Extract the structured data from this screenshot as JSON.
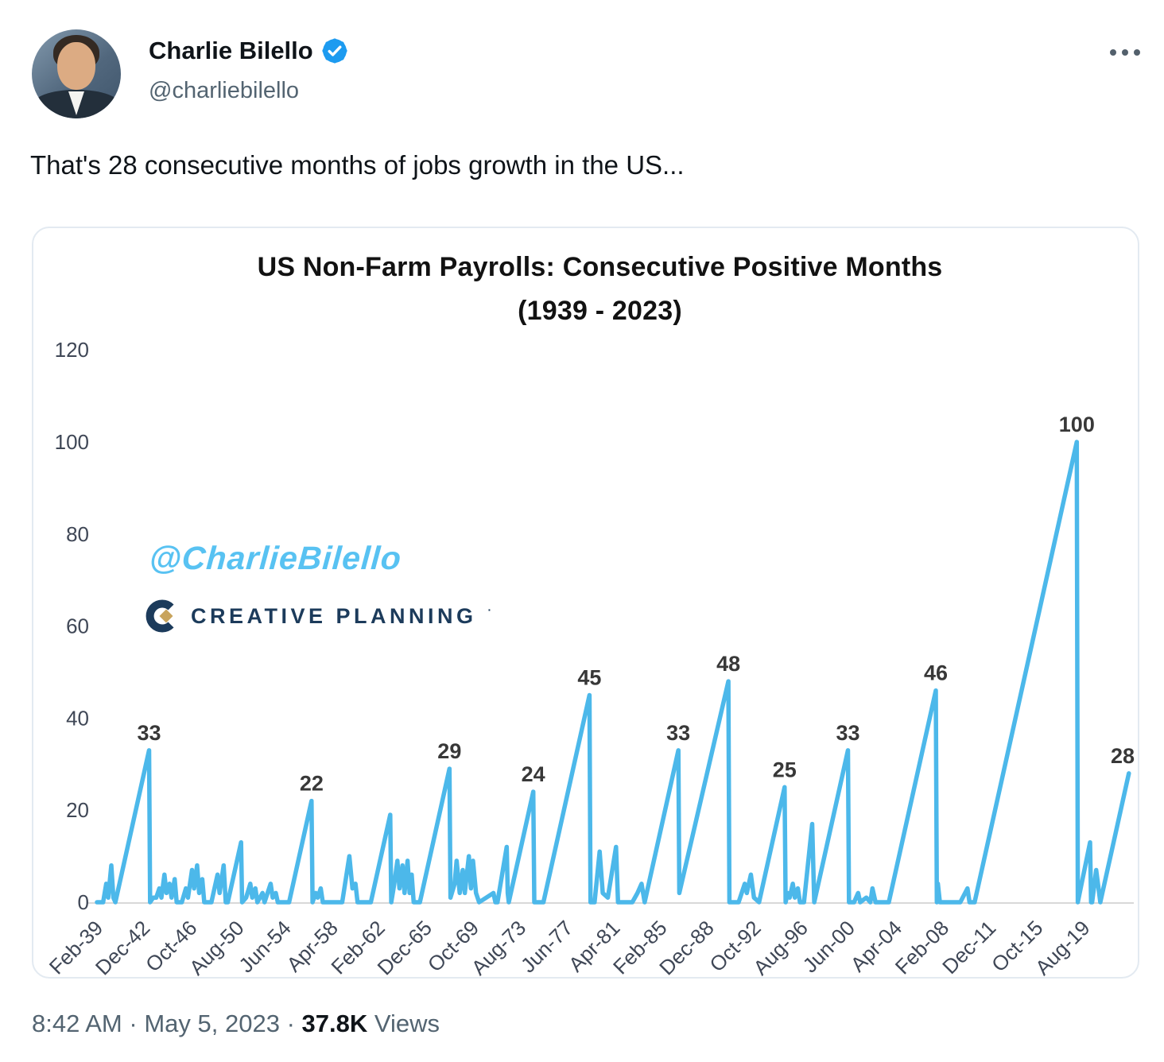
{
  "tweet": {
    "author_name": "Charlie Bilello",
    "author_handle": "@charliebilello",
    "text": "That's 28 consecutive months of jobs growth in the US...",
    "timestamp": "8:42 AM",
    "date": "May 5, 2023",
    "separator": "·",
    "views_count": "37.8K",
    "views_label": "Views"
  },
  "watermarks": {
    "handle": "@CharlieBilello",
    "brand": "CREATIVE PLANNING",
    "brand_mark": "·"
  },
  "colors": {
    "accent_blue": "#1D9BF0",
    "line_blue": "#4CB8EA",
    "watermark_blue": "#58C2F2",
    "brand_navy": "#1C3B5B",
    "brand_gold": "#C8A45C",
    "axis_text": "#3F4756",
    "baseline_gray": "#D8D8D8"
  },
  "chart_data": {
    "type": "line",
    "title_line1": "US Non-Farm Payrolls: Consecutive Positive Months",
    "title_line2": "(1939 - 2023)",
    "series_name": "Consecutive positive months of US non-farm payrolls",
    "x_unit": "months since Feb-1939",
    "ylim": [
      0,
      120
    ],
    "y_ticks": [
      0,
      20,
      40,
      60,
      80,
      100,
      120
    ],
    "x_tick_interval_months": 46,
    "x_tick_labels": [
      "Feb-39",
      "Dec-42",
      "Oct-46",
      "Aug-50",
      "Jun-54",
      "Apr-58",
      "Feb-62",
      "Dec-65",
      "Oct-69",
      "Aug-73",
      "Jun-77",
      "Apr-81",
      "Feb-85",
      "Dec-88",
      "Oct-92",
      "Aug-96",
      "Jun-00",
      "Apr-04",
      "Feb-08",
      "Dec-11",
      "Oct-15",
      "Aug-19"
    ],
    "grid": "baseline-only",
    "legend": "none",
    "line_color": "#4CB8EA",
    "peak_labels": [
      {
        "month": 51,
        "value": 33
      },
      {
        "month": 210,
        "value": 22
      },
      {
        "month": 345,
        "value": 29
      },
      {
        "month": 427,
        "value": 24
      },
      {
        "month": 482,
        "value": 45
      },
      {
        "month": 569,
        "value": 33
      },
      {
        "month": 618,
        "value": 48
      },
      {
        "month": 673,
        "value": 25
      },
      {
        "month": 735,
        "value": 33
      },
      {
        "month": 821,
        "value": 46
      },
      {
        "month": 959,
        "value": 100
      },
      {
        "month": 1010,
        "value": 28
      }
    ],
    "points": [
      [
        0,
        0
      ],
      [
        6,
        0
      ],
      [
        9,
        4
      ],
      [
        11,
        1
      ],
      [
        14,
        8
      ],
      [
        16,
        1
      ],
      [
        18,
        0
      ],
      [
        51,
        33
      ],
      [
        52,
        0
      ],
      [
        55,
        1
      ],
      [
        58,
        1
      ],
      [
        61,
        3
      ],
      [
        63,
        1
      ],
      [
        66,
        6
      ],
      [
        68,
        2
      ],
      [
        71,
        4
      ],
      [
        73,
        1
      ],
      [
        76,
        5
      ],
      [
        78,
        0
      ],
      [
        83,
        0
      ],
      [
        87,
        3
      ],
      [
        89,
        1
      ],
      [
        93,
        7
      ],
      [
        95,
        3
      ],
      [
        98,
        8
      ],
      [
        100,
        2
      ],
      [
        103,
        5
      ],
      [
        105,
        0
      ],
      [
        112,
        0
      ],
      [
        118,
        6
      ],
      [
        120,
        2
      ],
      [
        124,
        8
      ],
      [
        126,
        0
      ],
      [
        128,
        0
      ],
      [
        141,
        13
      ],
      [
        142,
        0
      ],
      [
        146,
        1
      ],
      [
        150,
        4
      ],
      [
        152,
        1
      ],
      [
        155,
        3
      ],
      [
        157,
        0
      ],
      [
        162,
        2
      ],
      [
        164,
        0
      ],
      [
        170,
        4
      ],
      [
        172,
        1
      ],
      [
        175,
        2
      ],
      [
        177,
        0
      ],
      [
        183,
        0
      ],
      [
        188,
        0
      ],
      [
        210,
        22
      ],
      [
        211,
        0
      ],
      [
        214,
        2
      ],
      [
        216,
        1
      ],
      [
        219,
        3
      ],
      [
        221,
        0
      ],
      [
        228,
        0
      ],
      [
        240,
        0
      ],
      [
        247,
        10
      ],
      [
        250,
        3
      ],
      [
        253,
        4
      ],
      [
        255,
        0
      ],
      [
        262,
        0
      ],
      [
        268,
        0
      ],
      [
        287,
        19
      ],
      [
        288,
        0
      ],
      [
        291,
        4
      ],
      [
        294,
        9
      ],
      [
        296,
        3
      ],
      [
        299,
        8
      ],
      [
        301,
        2
      ],
      [
        304,
        9
      ],
      [
        306,
        2
      ],
      [
        308,
        6
      ],
      [
        310,
        0
      ],
      [
        316,
        0
      ],
      [
        345,
        29
      ],
      [
        346,
        1
      ],
      [
        350,
        4
      ],
      [
        352,
        9
      ],
      [
        355,
        2
      ],
      [
        358,
        7
      ],
      [
        360,
        2
      ],
      [
        364,
        10
      ],
      [
        366,
        3
      ],
      [
        368,
        9
      ],
      [
        371,
        2
      ],
      [
        374,
        0
      ],
      [
        388,
        2
      ],
      [
        390,
        0
      ],
      [
        392,
        0
      ],
      [
        401,
        12
      ],
      [
        402,
        2
      ],
      [
        403,
        0
      ],
      [
        427,
        24
      ],
      [
        428,
        0
      ],
      [
        434,
        0
      ],
      [
        437,
        0
      ],
      [
        482,
        45
      ],
      [
        483,
        0
      ],
      [
        487,
        0
      ],
      [
        492,
        11
      ],
      [
        495,
        2
      ],
      [
        500,
        1
      ],
      [
        508,
        12
      ],
      [
        510,
        0
      ],
      [
        516,
        0
      ],
      [
        524,
        0
      ],
      [
        529,
        2
      ],
      [
        533,
        4
      ],
      [
        536,
        0
      ],
      [
        569,
        33
      ],
      [
        570,
        2
      ],
      [
        618,
        48
      ],
      [
        619,
        0
      ],
      [
        628,
        0
      ],
      [
        634,
        4
      ],
      [
        636,
        2
      ],
      [
        640,
        6
      ],
      [
        643,
        1
      ],
      [
        648,
        0
      ],
      [
        673,
        25
      ],
      [
        674,
        0
      ],
      [
        676,
        2
      ],
      [
        678,
        1
      ],
      [
        681,
        4
      ],
      [
        683,
        1
      ],
      [
        686,
        3
      ],
      [
        688,
        0
      ],
      [
        692,
        0
      ],
      [
        700,
        17
      ],
      [
        702,
        0
      ],
      [
        735,
        33
      ],
      [
        736,
        0
      ],
      [
        741,
        0
      ],
      [
        745,
        2
      ],
      [
        747,
        0
      ],
      [
        753,
        1
      ],
      [
        757,
        0
      ],
      [
        759,
        3
      ],
      [
        762,
        0
      ],
      [
        775,
        0
      ],
      [
        821,
        46
      ],
      [
        822,
        0
      ],
      [
        823,
        4
      ],
      [
        825,
        0
      ],
      [
        845,
        0
      ],
      [
        852,
        3
      ],
      [
        854,
        0
      ],
      [
        859,
        0
      ],
      [
        959,
        100
      ],
      [
        960,
        0
      ],
      [
        972,
        13
      ],
      [
        973,
        0
      ],
      [
        974,
        0
      ],
      [
        978,
        7
      ],
      [
        982,
        0
      ],
      [
        1010,
        28
      ]
    ]
  }
}
